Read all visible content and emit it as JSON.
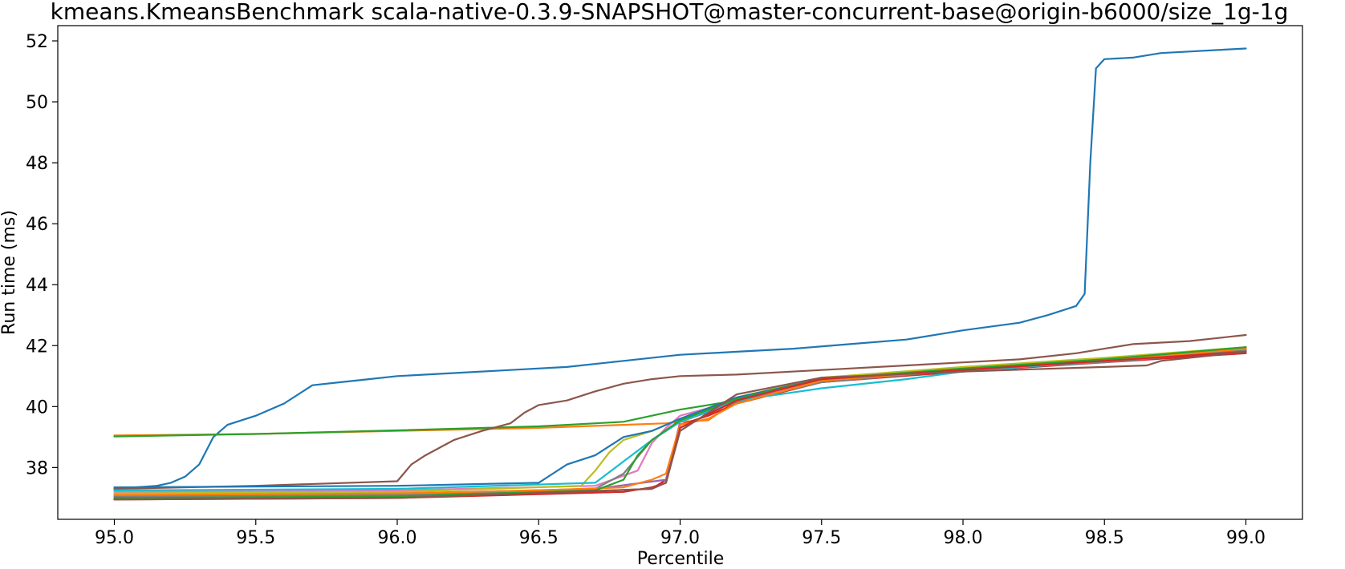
{
  "chart_data": {
    "type": "line",
    "title": "kmeans.KmeansBenchmark scala-native-0.3.9-SNAPSHOT@master-concurrent-base@origin-b6000/size_1g-1g",
    "xlabel": "Percentile",
    "ylabel": "Run time (ms)",
    "xlim": [
      94.8,
      99.2
    ],
    "ylim": [
      36.3,
      52.5
    ],
    "xticks": [
      "95.0",
      "95.5",
      "96.0",
      "96.5",
      "97.0",
      "97.5",
      "98.0",
      "98.5",
      "99.0"
    ],
    "yticks": [
      "38",
      "40",
      "42",
      "44",
      "46",
      "48",
      "50",
      "52"
    ],
    "grid": false,
    "legend": "none",
    "series": [
      {
        "color": "#1f77b4",
        "x": [
          95.0,
          95.15,
          95.2,
          95.25,
          95.3,
          95.35,
          95.4,
          95.5,
          95.6,
          95.7,
          95.8,
          95.9,
          96.0,
          96.2,
          96.4,
          96.6,
          96.8,
          97.0,
          97.2,
          97.4,
          97.6,
          97.8,
          98.0,
          98.2,
          98.3,
          98.4,
          98.43,
          98.45,
          98.47,
          98.5,
          98.6,
          98.7,
          98.8,
          98.9,
          99.0
        ],
        "y": [
          37.3,
          37.4,
          37.5,
          37.7,
          38.1,
          39.0,
          39.4,
          39.7,
          40.1,
          40.7,
          40.8,
          40.9,
          41.0,
          41.1,
          41.2,
          41.3,
          41.5,
          41.7,
          41.8,
          41.9,
          42.05,
          42.2,
          42.5,
          42.75,
          43.0,
          43.3,
          43.7,
          48.0,
          51.1,
          51.4,
          51.45,
          51.6,
          51.65,
          51.7,
          51.75
        ]
      },
      {
        "color": "#ff7f0e",
        "x": [
          95.0,
          95.5,
          96.0,
          96.5,
          96.8,
          96.95,
          97.0,
          97.1,
          97.2,
          97.5,
          98.0,
          98.5,
          99.0
        ],
        "y": [
          39.05,
          39.1,
          39.2,
          39.3,
          39.4,
          39.45,
          39.5,
          39.55,
          40.2,
          40.8,
          41.2,
          41.5,
          41.85
        ]
      },
      {
        "color": "#2ca02c",
        "x": [
          95.0,
          95.5,
          96.0,
          96.5,
          96.8,
          96.9,
          97.0,
          97.2,
          97.5,
          98.0,
          98.5,
          99.0
        ],
        "y": [
          39.02,
          39.1,
          39.22,
          39.35,
          39.5,
          39.7,
          39.9,
          40.2,
          40.9,
          41.25,
          41.55,
          41.9
        ]
      },
      {
        "color": "#d62728",
        "x": [
          95.0,
          96.0,
          96.5,
          96.9,
          96.95,
          97.0,
          97.1,
          97.2,
          97.5,
          98.0,
          98.5,
          99.0
        ],
        "y": [
          36.98,
          37.05,
          37.15,
          37.3,
          37.6,
          39.4,
          39.7,
          40.1,
          40.8,
          41.15,
          41.45,
          41.75
        ]
      },
      {
        "color": "#9467bd",
        "x": [
          95.0,
          96.0,
          96.7,
          96.95,
          97.0,
          97.1,
          97.2,
          97.5,
          98.0,
          98.5,
          99.0
        ],
        "y": [
          37.1,
          37.15,
          37.3,
          37.6,
          39.5,
          39.9,
          40.3,
          40.9,
          41.2,
          41.5,
          41.95
        ]
      },
      {
        "color": "#8c564b",
        "x": [
          95.0,
          95.5,
          96.0,
          96.05,
          96.1,
          96.2,
          96.3,
          96.4,
          96.45,
          96.5,
          96.6,
          96.7,
          96.8,
          96.9,
          97.0,
          97.2,
          97.5,
          97.8,
          98.0,
          98.2,
          98.4,
          98.5,
          98.6,
          98.8,
          98.9,
          99.0
        ],
        "y": [
          37.3,
          37.4,
          37.55,
          38.1,
          38.4,
          38.9,
          39.2,
          39.45,
          39.8,
          40.05,
          40.2,
          40.5,
          40.75,
          40.9,
          41.0,
          41.05,
          41.2,
          41.35,
          41.45,
          41.55,
          41.75,
          41.9,
          42.05,
          42.15,
          42.25,
          42.35
        ]
      },
      {
        "color": "#e377c2",
        "x": [
          95.0,
          96.0,
          96.7,
          96.85,
          96.9,
          96.95,
          97.0,
          97.2,
          97.5,
          98.0,
          98.5,
          99.0
        ],
        "y": [
          37.2,
          37.25,
          37.4,
          37.9,
          38.8,
          39.3,
          39.7,
          40.2,
          40.85,
          41.2,
          41.5,
          41.85
        ]
      },
      {
        "color": "#7f7f7f",
        "x": [
          95.0,
          96.0,
          96.7,
          96.8,
          96.9,
          97.0,
          97.2,
          97.5,
          98.0,
          98.5,
          99.0
        ],
        "y": [
          37.05,
          37.1,
          37.3,
          37.8,
          38.9,
          39.5,
          40.15,
          40.8,
          41.2,
          41.45,
          41.85
        ]
      },
      {
        "color": "#bcbd22",
        "x": [
          95.0,
          96.0,
          96.65,
          96.7,
          96.75,
          96.8,
          96.9,
          97.0,
          97.2,
          97.5,
          98.0,
          98.5,
          99.0
        ],
        "y": [
          37.15,
          37.2,
          37.4,
          37.9,
          38.5,
          38.9,
          39.2,
          39.6,
          40.3,
          40.95,
          41.3,
          41.6,
          41.95
        ]
      },
      {
        "color": "#17becf",
        "x": [
          95.0,
          96.0,
          96.7,
          96.8,
          96.9,
          97.0,
          97.2,
          97.5,
          97.8,
          98.0,
          98.5,
          99.0
        ],
        "y": [
          37.25,
          37.3,
          37.5,
          38.2,
          38.9,
          39.5,
          40.2,
          40.6,
          40.9,
          41.15,
          41.5,
          41.9
        ]
      },
      {
        "color": "#1f77b4",
        "x": [
          95.0,
          96.0,
          96.5,
          96.55,
          96.6,
          96.7,
          96.75,
          96.8,
          96.9,
          97.0,
          97.2,
          97.5,
          98.0,
          98.5,
          99.0
        ],
        "y": [
          37.35,
          37.4,
          37.5,
          37.8,
          38.1,
          38.4,
          38.7,
          39.0,
          39.2,
          39.6,
          40.3,
          40.9,
          41.2,
          41.5,
          41.9
        ]
      },
      {
        "color": "#ff7f0e",
        "x": [
          95.0,
          96.0,
          96.5,
          96.8,
          96.9,
          96.95,
          97.0,
          97.1,
          97.2,
          97.5,
          98.0,
          98.5,
          99.0
        ],
        "y": [
          37.1,
          37.15,
          37.25,
          37.35,
          37.6,
          37.8,
          39.4,
          39.6,
          40.1,
          40.85,
          41.2,
          41.5,
          41.9
        ]
      },
      {
        "color": "#2ca02c",
        "x": [
          95.0,
          96.0,
          96.7,
          96.8,
          96.85,
          96.9,
          97.0,
          97.2,
          97.5,
          98.0,
          98.5,
          99.0
        ],
        "y": [
          37.0,
          37.05,
          37.25,
          37.6,
          38.4,
          38.9,
          39.55,
          40.25,
          40.9,
          41.25,
          41.55,
          41.95
        ]
      },
      {
        "color": "#d62728",
        "x": [
          95.0,
          96.0,
          96.8,
          96.9,
          96.95,
          97.0,
          97.2,
          97.5,
          98.0,
          98.5,
          99.0
        ],
        "y": [
          36.95,
          37.0,
          37.2,
          37.35,
          37.5,
          39.3,
          40.2,
          40.9,
          41.2,
          41.5,
          41.8
        ]
      },
      {
        "color": "#8c564b",
        "x": [
          95.0,
          96.0,
          96.9,
          96.95,
          97.0,
          97.2,
          97.5,
          98.0,
          98.5,
          98.65,
          98.7,
          99.0
        ],
        "y": [
          36.95,
          37.0,
          37.3,
          37.5,
          39.2,
          40.4,
          40.95,
          41.15,
          41.3,
          41.35,
          41.5,
          41.8
        ]
      }
    ]
  }
}
